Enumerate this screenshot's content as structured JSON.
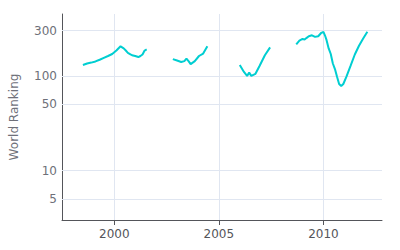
{
  "chart_data": {
    "type": "line",
    "ylabel": "World Ranking",
    "log": "y",
    "grid": true,
    "xlim": [
      1997.5,
      2012.8
    ],
    "ylim": [
      3,
      450
    ],
    "xticks": [
      2000,
      2005,
      2010
    ],
    "yticks": [
      5,
      10,
      50,
      100,
      300
    ],
    "color": "#00CED1",
    "series": [
      {
        "x": [
          1998.5,
          1998.7,
          1998.9,
          1999.1,
          1999.3,
          1999.5,
          1999.7,
          1999.9,
          2000.1,
          2000.3,
          2000.45,
          2000.55,
          2000.65,
          2000.75,
          2000.85,
          2001.0,
          2001.15,
          2001.25,
          2001.35,
          2001.45,
          2001.55
        ],
        "values": [
          130,
          135,
          138,
          142,
          148,
          155,
          162,
          170,
          185,
          205,
          195,
          185,
          175,
          170,
          165,
          162,
          158,
          162,
          168,
          185,
          190
        ]
      },
      {
        "x": [
          2002.8,
          2003.0,
          2003.2,
          2003.35,
          2003.45,
          2003.55,
          2003.65,
          2003.85,
          2004.05,
          2004.25,
          2004.45
        ],
        "values": [
          150,
          145,
          140,
          143,
          152,
          143,
          133,
          143,
          162,
          172,
          205
        ]
      },
      {
        "x": [
          2006.0,
          2006.2,
          2006.35,
          2006.45,
          2006.55,
          2006.75,
          2006.95,
          2007.2,
          2007.45
        ],
        "values": [
          130,
          110,
          100,
          108,
          100,
          105,
          128,
          165,
          200
        ]
      },
      {
        "x": [
          2008.7,
          2008.85,
          2009.0,
          2009.1,
          2009.2,
          2009.3,
          2009.45,
          2009.6,
          2009.75,
          2009.9,
          2010.0,
          2010.08,
          2010.15,
          2010.25,
          2010.35,
          2010.45,
          2010.55,
          2010.65,
          2010.75,
          2010.85,
          2010.95,
          2011.1,
          2011.3,
          2011.5,
          2011.7,
          2011.9,
          2012.1
        ],
        "values": [
          215,
          235,
          245,
          242,
          252,
          262,
          268,
          258,
          262,
          285,
          292,
          265,
          238,
          195,
          170,
          135,
          118,
          98,
          82,
          78,
          82,
          98,
          128,
          168,
          208,
          248,
          292
        ]
      }
    ]
  }
}
